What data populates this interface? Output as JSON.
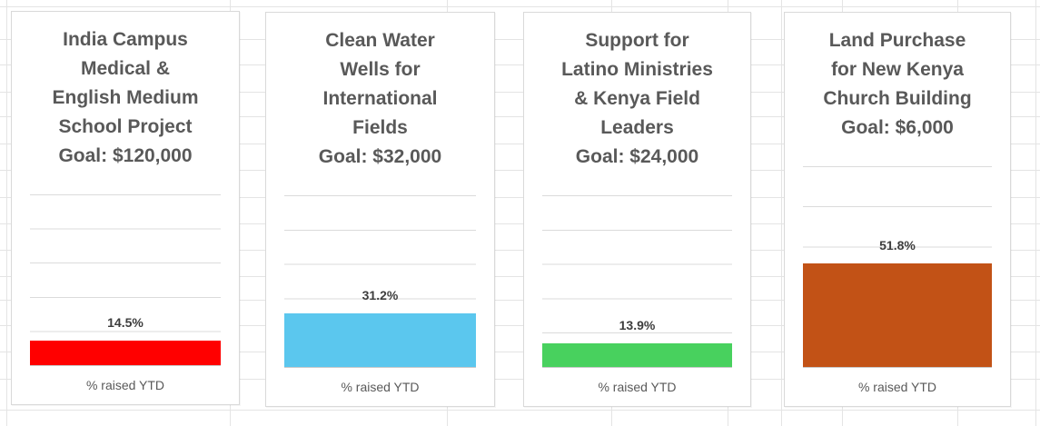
{
  "app": {
    "background_color": "#FFFFFF",
    "sheet_gridline_color": "#E4E4E4",
    "panel_border_color": "#D9D9D9",
    "title_color": "#595959",
    "data_label_color": "#3D3D3D",
    "axis_line_color": "#C9C9C9",
    "chart_gridline_color": "#DBDBDB"
  },
  "chart_data": [
    {
      "type": "bar",
      "title": "India Campus Medical & English Medium School Project Goal: $120,000",
      "title_display": "India Campus\nMedical &\nEnglish Medium\nSchool Project\nGoal: $120,000",
      "goal": "$120,000",
      "categories": [
        "% raised YTD"
      ],
      "values": [
        14.5
      ],
      "data_label": "14.5%",
      "ylim": [
        0,
        100
      ],
      "gridlines": "horizontal every 20%, no tick labels",
      "legend": "none",
      "bar_color": "#FF0000"
    },
    {
      "type": "bar",
      "title": "Clean Water Wells for International Fields Goal: $32,000",
      "title_display": "Clean Water\nWells for\nInternational\nFields\nGoal: $32,000",
      "goal": "$32,000",
      "categories": [
        "% raised YTD"
      ],
      "values": [
        31.2
      ],
      "data_label": "31.2%",
      "ylim": [
        0,
        100
      ],
      "gridlines": "horizontal every 20%, no tick labels",
      "legend": "none",
      "bar_color": "#5BC7EE"
    },
    {
      "type": "bar",
      "title": "Support for Latino Ministries & Kenya Field Leaders Goal: $24,000",
      "title_display": "Support for\nLatino Ministries\n& Kenya Field\nLeaders\nGoal: $24,000",
      "goal": "$24,000",
      "categories": [
        "% raised YTD"
      ],
      "values": [
        13.9
      ],
      "data_label": "13.9%",
      "ylim": [
        0,
        100
      ],
      "gridlines": "horizontal every 20%, no tick labels",
      "legend": "none",
      "bar_color": "#48D15E"
    },
    {
      "type": "bar",
      "title": "Land Purchase for New Kenya Church Building Goal: $6,000",
      "title_display": "Land Purchase\nfor New Kenya\nChurch Building\nGoal: $6,000",
      "goal": "$6,000",
      "categories": [
        "% raised YTD"
      ],
      "values": [
        51.8
      ],
      "data_label": "51.8%",
      "ylim": [
        0,
        100
      ],
      "gridlines": "horizontal every 20%, no tick labels",
      "legend": "none",
      "bar_color": "#C25216"
    }
  ]
}
